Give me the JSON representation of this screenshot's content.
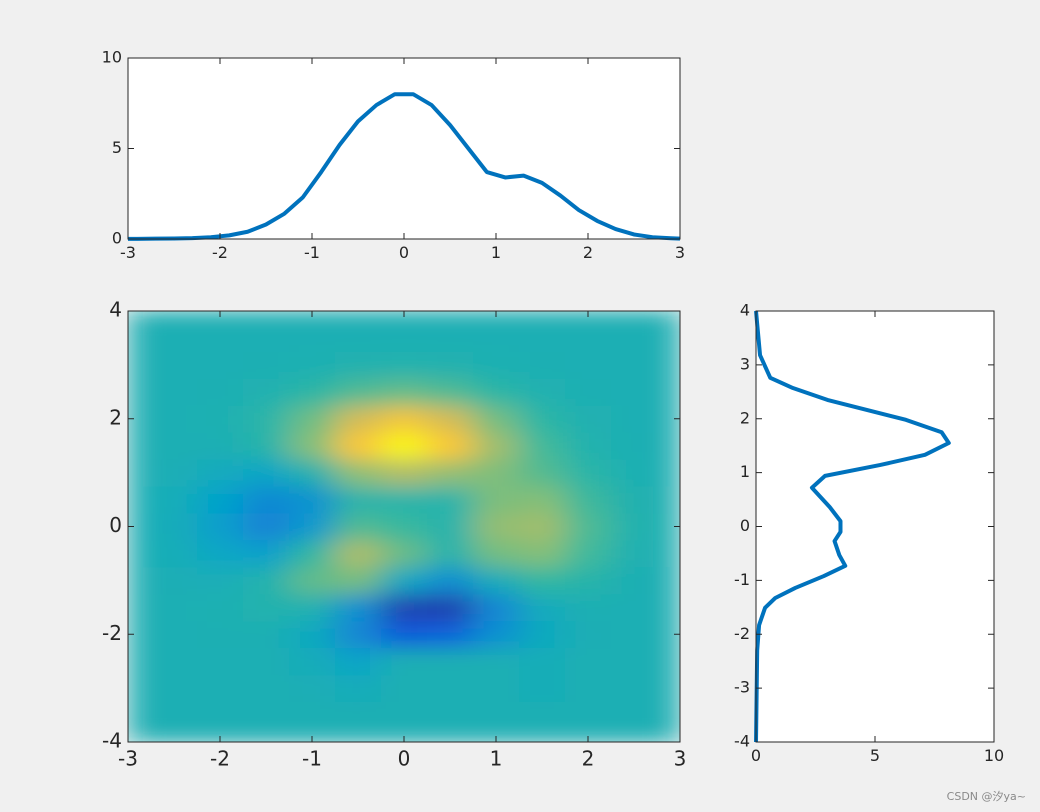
{
  "chart_data": [
    {
      "type": "line",
      "x": [
        -3,
        -2.9,
        -2.7,
        -2.5,
        -2.3,
        -2.1,
        -1.9,
        -1.7,
        -1.5,
        -1.3,
        -1.1,
        -0.9,
        -0.7,
        -0.5,
        -0.3,
        -0.1,
        0.1,
        0.3,
        0.5,
        0.7,
        0.9,
        1.1,
        1.3,
        1.5,
        1.7,
        1.9,
        2.1,
        2.3,
        2.5,
        2.7,
        2.9,
        3
      ],
      "values": [
        0.01,
        0.01,
        0.02,
        0.03,
        0.05,
        0.1,
        0.2,
        0.4,
        0.8,
        1.4,
        2.3,
        3.7,
        5.2,
        6.5,
        7.4,
        8.0,
        8.0,
        7.4,
        6.3,
        5.0,
        3.7,
        3.4,
        3.5,
        3.1,
        2.4,
        1.6,
        1.0,
        0.55,
        0.25,
        0.1,
        0.04,
        0.02
      ],
      "color": "#0072bd",
      "xlim": [
        -3,
        3
      ],
      "ylim": [
        0,
        10
      ],
      "xticks": [
        -3,
        -2,
        -1,
        0,
        1,
        2,
        3
      ],
      "yticks": [
        0,
        5,
        10
      ]
    },
    {
      "type": "heatmap",
      "x": [
        -3,
        -2.5,
        -2,
        -1.5,
        -1,
        -0.5,
        0,
        0.5,
        1,
        1.5,
        2,
        2.5,
        3
      ],
      "y": [
        -4,
        -3.5,
        -3,
        -2.5,
        -2,
        -1.5,
        -1,
        -0.5,
        0,
        0.5,
        1,
        1.5,
        2,
        2.5,
        3,
        3.5,
        4
      ],
      "z": [
        [
          0,
          0,
          0,
          0,
          0,
          0,
          0,
          0,
          0,
          0,
          0,
          0,
          0
        ],
        [
          0,
          0,
          0,
          0,
          0,
          0,
          0,
          0,
          0,
          0,
          0,
          0,
          0
        ],
        [
          0,
          0,
          0,
          0,
          -0.1,
          -0.3,
          0,
          0,
          0,
          -0.2,
          0,
          0,
          0
        ],
        [
          0,
          0,
          0.01,
          0,
          -0.24,
          -0.92,
          0,
          0,
          0,
          -0.18,
          0,
          0,
          0
        ],
        [
          0,
          0,
          0.05,
          0.05,
          -0.59,
          -2.64,
          -4.76,
          -4.35,
          -2.1,
          -0.53,
          -0.06,
          0,
          0
        ],
        [
          0,
          0.01,
          0.08,
          0.33,
          0.17,
          -2.16,
          -5.65,
          -5.74,
          -2.62,
          -0.44,
          0.04,
          0,
          0
        ],
        [
          0,
          -0.05,
          -0.13,
          0.3,
          1.86,
          2.22,
          -0.73,
          -2.22,
          -0.27,
          0.88,
          0.5,
          0.05,
          0
        ],
        [
          0,
          -0.2,
          -0.8,
          -1.21,
          0.8,
          3.56,
          2.0,
          0.39,
          2.2,
          2.55,
          1.12,
          0.15,
          0
        ],
        [
          0,
          -0.29,
          -1.33,
          -2.77,
          -1.65,
          1.48,
          0.98,
          0.38,
          2.94,
          3.26,
          1.41,
          0.29,
          0.02
        ],
        [
          0,
          -0.23,
          -1.12,
          -2.49,
          -2.0,
          0.39,
          0.46,
          0.37,
          2.38,
          2.55,
          1.09,
          0.23,
          0.01
        ],
        [
          0,
          -0.1,
          -0.48,
          -0.86,
          0.23,
          2.8,
          3.69,
          2.94,
          2.44,
          1.57,
          0.58,
          0.1,
          0
        ],
        [
          0,
          0,
          -0.01,
          0.47,
          2.6,
          6.17,
          7.96,
          6.23,
          3.24,
          1.18,
          0.29,
          0.03,
          0
        ],
        [
          0,
          0,
          0.08,
          0.55,
          2.1,
          4.56,
          5.86,
          4.57,
          2.21,
          0.67,
          0.13,
          0.01,
          0
        ],
        [
          0,
          0,
          0.03,
          0.2,
          0.69,
          1.47,
          1.89,
          1.47,
          0.69,
          0.2,
          0.03,
          0,
          0
        ],
        [
          0,
          0,
          0,
          0.03,
          0.11,
          0.23,
          0.3,
          0.23,
          0.11,
          0.03,
          0,
          0,
          0
        ],
        [
          0,
          0,
          0,
          0,
          0,
          0,
          0,
          0,
          0,
          0,
          0,
          0,
          0
        ],
        [
          0,
          0,
          0,
          0,
          0,
          0,
          0,
          0,
          0,
          0,
          0,
          0,
          0
        ]
      ],
      "colormap": [
        "#352a87",
        "#0f5cdd",
        "#1481d6",
        "#06a4ca",
        "#2eb7a4",
        "#87bf77",
        "#d1bb59",
        "#fec832",
        "#f9fb0e"
      ],
      "clim": [
        -6.55,
        8.1
      ],
      "xlim": [
        -3,
        3
      ],
      "ylim": [
        -4,
        4
      ],
      "xticks": [
        -3,
        -2,
        -1,
        0,
        1,
        2,
        3
      ],
      "yticks": [
        -4,
        -2,
        0,
        2,
        4
      ]
    },
    {
      "type": "line",
      "orientation": "horizontal",
      "y": [
        4,
        3.18,
        2.76,
        2.57,
        2.35,
        1.98,
        1.75,
        1.55,
        1.33,
        1.14,
        0.94,
        0.72,
        0.36,
        0.1,
        -0.1,
        -0.27,
        -0.53,
        -0.73,
        -0.92,
        -1.14,
        -1.33,
        -1.51,
        -1.83,
        -2.3,
        -4
      ],
      "values": [
        0,
        0.17,
        0.6,
        1.55,
        3.0,
        6.3,
        7.8,
        8.1,
        7.1,
        5.2,
        2.9,
        2.35,
        3.1,
        3.55,
        3.55,
        3.3,
        3.5,
        3.75,
        2.85,
        1.65,
        0.8,
        0.38,
        0.13,
        0.05,
        0
      ],
      "color": "#0072bd",
      "xlim": [
        0,
        10
      ],
      "ylim": [
        -4,
        4
      ],
      "xticks": [
        0,
        5,
        10
      ],
      "yticks": [
        -4,
        -3,
        -2,
        -1,
        0,
        1,
        2,
        3,
        4
      ]
    }
  ],
  "watermark": "CSDN @汐ya~"
}
